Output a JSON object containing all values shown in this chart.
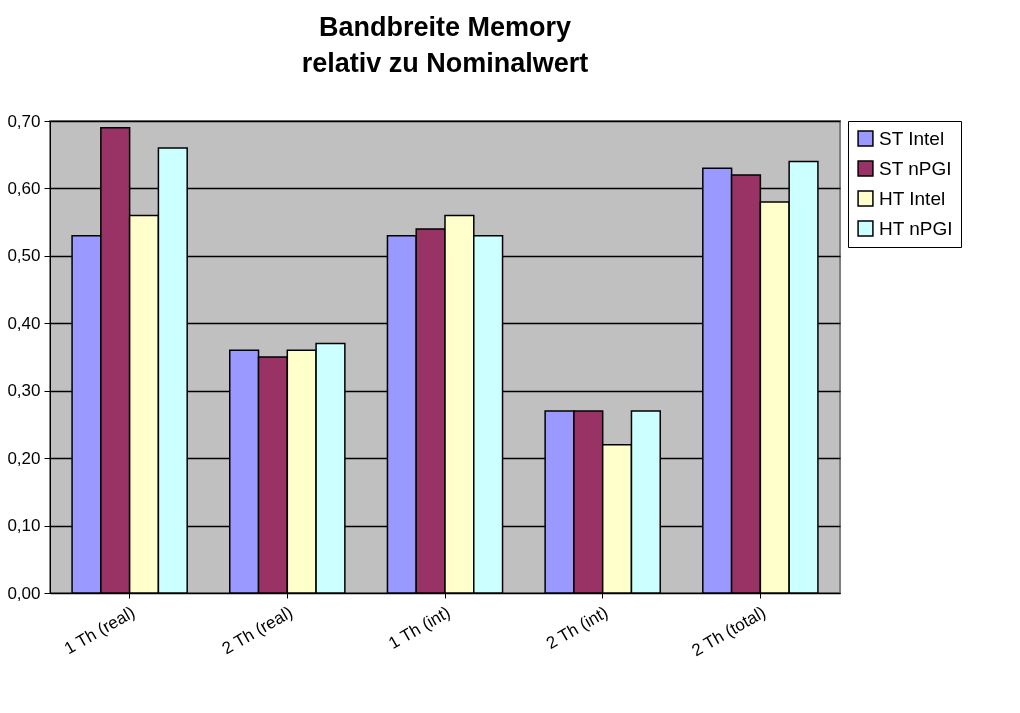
{
  "chart_data": {
    "type": "bar",
    "title": "Bandbreite Memory\nrelativ zu Nominalwert",
    "categories": [
      "1 Th (real)",
      "2 Th (real)",
      "1 Th (int)",
      "2 Th (int)",
      "2 Th (total)"
    ],
    "series": [
      {
        "name": "ST Intel",
        "color": "#9999ff",
        "values": [
          0.53,
          0.36,
          0.53,
          0.27,
          0.63
        ]
      },
      {
        "name": "ST nPGI",
        "color": "#993366",
        "values": [
          0.69,
          0.35,
          0.54,
          0.27,
          0.62
        ]
      },
      {
        "name": "HT Intel",
        "color": "#ffffcc",
        "values": [
          0.56,
          0.36,
          0.56,
          0.22,
          0.58
        ]
      },
      {
        "name": "HT nPGI",
        "color": "#ccffff",
        "values": [
          0.66,
          0.37,
          0.53,
          0.27,
          0.64
        ]
      }
    ],
    "ylim": [
      0,
      0.7
    ],
    "yticks": [
      {
        "value": 0,
        "label": "0,00"
      },
      {
        "value": 0.1,
        "label": "0,10"
      },
      {
        "value": 0.2,
        "label": "0,20"
      },
      {
        "value": 0.3,
        "label": "0,30"
      },
      {
        "value": 0.4,
        "label": "0,40"
      },
      {
        "value": 0.5,
        "label": "0,50"
      },
      {
        "value": 0.6,
        "label": "0,60"
      },
      {
        "value": 0.7,
        "label": "0,70"
      }
    ],
    "grid": "y",
    "legend": "right"
  }
}
